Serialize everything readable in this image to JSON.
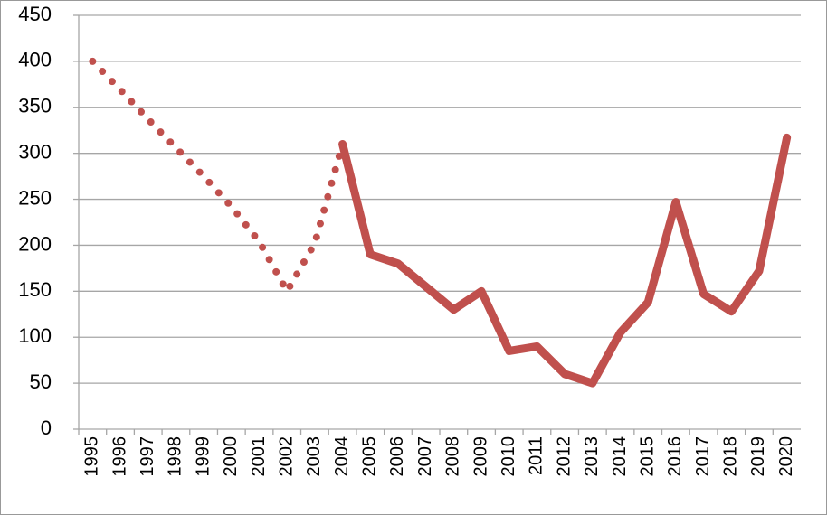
{
  "chart_data": {
    "type": "line",
    "categories": [
      "1995",
      "1996",
      "1997",
      "1998",
      "1999",
      "2000",
      "2001",
      "2002",
      "2003",
      "2004",
      "2005",
      "2006",
      "2007",
      "2008",
      "2009",
      "2010",
      "2011",
      "2012",
      "2013",
      "2014",
      "2015",
      "2016",
      "2017",
      "2018",
      "2019",
      "2020"
    ],
    "series": [
      {
        "color": "#c0504d",
        "dash": "dotted",
        "values": [
          400,
          369,
          337,
          306,
          275,
          242,
          204,
          150,
          202,
          310,
          null,
          null,
          null,
          null,
          null,
          null,
          null,
          null,
          null,
          null,
          null,
          null,
          null,
          null,
          null,
          null
        ]
      },
      {
        "color": "#c0504d",
        "dash": "solid",
        "values": [
          null,
          null,
          null,
          null,
          null,
          null,
          null,
          null,
          null,
          310,
          190,
          180,
          155,
          130,
          150,
          85,
          90,
          60,
          50,
          105,
          138,
          247,
          147,
          128,
          172,
          317
        ]
      }
    ],
    "ylim": [
      0,
      450
    ],
    "yticks": [
      0,
      50,
      100,
      150,
      200,
      250,
      300,
      350,
      400,
      450
    ],
    "grid": true
  }
}
